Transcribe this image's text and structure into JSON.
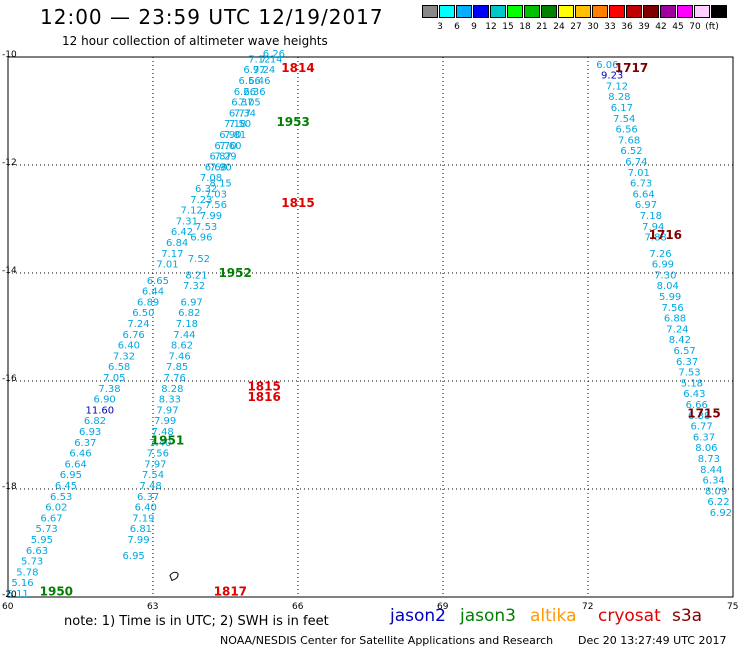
{
  "title": "12:00 — 23:59 UTC 12/19/2017",
  "subtitle": "12 hour collection of altimeter wave heights",
  "legend": {
    "unit": "(ft)",
    "colors": [
      "#888888",
      "#00ffff",
      "#00b0ff",
      "#0000ff",
      "#00c8c8",
      "#00ff00",
      "#00c000",
      "#008000",
      "#ffff00",
      "#ffc000",
      "#ff8000",
      "#ff0000",
      "#c00000",
      "#800000",
      "#a000a0",
      "#ff00ff",
      "#ffd0ff",
      "#000000"
    ],
    "labels": [
      "3",
      "6",
      "9",
      "12",
      "15",
      "18",
      "21",
      "24",
      "27",
      "30",
      "33",
      "36",
      "39",
      "42",
      "45",
      "70"
    ]
  },
  "axes": {
    "lat_ticks": [
      "-10",
      "-12",
      "-14",
      "-16",
      "-18",
      "-20"
    ],
    "lon_ticks": [
      "60",
      "63",
      "66",
      "69",
      "72",
      "75"
    ]
  },
  "passes": [
    {
      "time": "1814",
      "color": "#e00000",
      "lon": 66.0,
      "lat": -10.2
    },
    {
      "time": "1953",
      "color": "#008000",
      "lon": 65.9,
      "lat": -11.2
    },
    {
      "time": "1815",
      "color": "#e00000",
      "lon": 66.0,
      "lat": -12.7
    },
    {
      "time": "1952",
      "color": "#008000",
      "lon": 64.7,
      "lat": -14.0
    },
    {
      "time": "1815",
      "color": "#e00000",
      "lon": 65.3,
      "lat": -16.1
    },
    {
      "time": "1816",
      "color": "#e00000",
      "lon": 65.3,
      "lat": -16.3
    },
    {
      "time": "1951",
      "color": "#008000",
      "lon": 63.3,
      "lat": -17.1
    },
    {
      "time": "1950",
      "color": "#008000",
      "lon": 61.0,
      "lat": -19.9
    },
    {
      "time": "1817",
      "color": "#e00000",
      "lon": 64.6,
      "lat": -19.9
    },
    {
      "time": "1717",
      "color": "#800000",
      "lon": 72.9,
      "lat": -10.2
    },
    {
      "time": "1716",
      "color": "#800000",
      "lon": 73.6,
      "lat": -13.3
    },
    {
      "time": "1715",
      "color": "#800000",
      "lon": 74.4,
      "lat": -16.6
    }
  ],
  "tracks": [
    {
      "name": "track-a",
      "color": "#00a8e0",
      "values": [
        {
          "lon": 65.2,
          "lat": -10.1,
          "v": "7.12"
        },
        {
          "lon": 65.1,
          "lat": -10.3,
          "v": "6.97"
        },
        {
          "lon": 65.0,
          "lat": -10.5,
          "v": "6.56"
        },
        {
          "lon": 64.9,
          "lat": -10.7,
          "v": "6.26"
        },
        {
          "lon": 64.85,
          "lat": -10.9,
          "v": "6.37"
        },
        {
          "lon": 64.8,
          "lat": -11.1,
          "v": "6.77"
        },
        {
          "lon": 64.7,
          "lat": -11.3,
          "v": "7.18"
        },
        {
          "lon": 64.6,
          "lat": -11.5,
          "v": "6.90"
        },
        {
          "lon": 64.5,
          "lat": -11.7,
          "v": "6.70"
        },
        {
          "lon": 64.4,
          "lat": -11.9,
          "v": "6.87"
        },
        {
          "lon": 64.3,
          "lat": -12.1,
          "v": "6.68"
        },
        {
          "lon": 64.2,
          "lat": -12.3,
          "v": "7.08"
        },
        {
          "lon": 64.1,
          "lat": -12.5,
          "v": "6.32"
        },
        {
          "lon": 64.0,
          "lat": -12.7,
          "v": "7.23"
        },
        {
          "lon": 63.8,
          "lat": -12.9,
          "v": "7.12"
        },
        {
          "lon": 63.7,
          "lat": -13.1,
          "v": "7.31"
        },
        {
          "lon": 63.6,
          "lat": -13.3,
          "v": "6.42"
        },
        {
          "lon": 63.5,
          "lat": -13.5,
          "v": "6.84"
        },
        {
          "lon": 63.4,
          "lat": -13.7,
          "v": "7.17"
        },
        {
          "lon": 63.3,
          "lat": -13.9,
          "v": "7.01"
        },
        {
          "lon": 63.1,
          "lat": -14.2,
          "v": "6.65"
        },
        {
          "lon": 63.0,
          "lat": -14.4,
          "v": "6.44"
        },
        {
          "lon": 62.9,
          "lat": -14.6,
          "v": "6.89"
        },
        {
          "lon": 62.8,
          "lat": -14.8,
          "v": "6.50"
        },
        {
          "lon": 62.7,
          "lat": -15.0,
          "v": "7.24"
        },
        {
          "lon": 62.6,
          "lat": -15.2,
          "v": "6.76"
        },
        {
          "lon": 62.5,
          "lat": -15.4,
          "v": "6.40"
        },
        {
          "lon": 62.4,
          "lat": -15.6,
          "v": "7.32"
        },
        {
          "lon": 62.3,
          "lat": -15.8,
          "v": "6.58"
        },
        {
          "lon": 62.2,
          "lat": -16.0,
          "v": "7.05"
        },
        {
          "lon": 62.1,
          "lat": -16.2,
          "v": "7.38"
        },
        {
          "lon": 62.0,
          "lat": -16.4,
          "v": "6.90"
        },
        {
          "lon": 61.9,
          "lat": -16.6,
          "v": "11.60",
          "color": "#0000c0"
        },
        {
          "lon": 61.8,
          "lat": -16.8,
          "v": "6.82"
        },
        {
          "lon": 61.7,
          "lat": -17.0,
          "v": "6.93"
        },
        {
          "lon": 61.6,
          "lat": -17.2,
          "v": "6.37"
        },
        {
          "lon": 61.5,
          "lat": -17.4,
          "v": "6.46"
        },
        {
          "lon": 61.4,
          "lat": -17.6,
          "v": "6.64"
        },
        {
          "lon": 61.3,
          "lat": -17.8,
          "v": "6.95"
        },
        {
          "lon": 61.2,
          "lat": -18.0,
          "v": "6.45"
        },
        {
          "lon": 61.1,
          "lat": -18.2,
          "v": "6.53"
        },
        {
          "lon": 61.0,
          "lat": -18.4,
          "v": "6.02"
        },
        {
          "lon": 60.9,
          "lat": -18.6,
          "v": "6.67"
        },
        {
          "lon": 60.8,
          "lat": -18.8,
          "v": "5.73"
        },
        {
          "lon": 60.7,
          "lat": -19.0,
          "v": "5.95"
        },
        {
          "lon": 60.6,
          "lat": -19.2,
          "v": "6.63"
        },
        {
          "lon": 60.5,
          "lat": -19.4,
          "v": "5.73"
        },
        {
          "lon": 60.4,
          "lat": -19.6,
          "v": "5.78"
        },
        {
          "lon": 60.3,
          "lat": -19.8,
          "v": "5.16"
        },
        {
          "lon": 60.2,
          "lat": -20.0,
          "v": "6.11"
        }
      ]
    },
    {
      "name": "track-b",
      "color": "#00a8e0",
      "values": [
        {
          "lon": 65.5,
          "lat": -10.0,
          "v": "6.26"
        },
        {
          "lon": 65.45,
          "lat": -10.1,
          "v": "7.14"
        },
        {
          "lon": 65.3,
          "lat": -10.3,
          "v": "7.24"
        },
        {
          "lon": 65.2,
          "lat": -10.5,
          "v": "6.46"
        },
        {
          "lon": 65.1,
          "lat": -10.7,
          "v": "6.36"
        },
        {
          "lon": 65.0,
          "lat": -10.9,
          "v": "7.05"
        },
        {
          "lon": 64.9,
          "lat": -11.1,
          "v": "7.34"
        },
        {
          "lon": 64.8,
          "lat": -11.3,
          "v": "7.50"
        },
        {
          "lon": 64.7,
          "lat": -11.5,
          "v": "7.81"
        },
        {
          "lon": 64.6,
          "lat": -11.7,
          "v": "7.60"
        },
        {
          "lon": 64.5,
          "lat": -11.9,
          "v": "7.29"
        },
        {
          "lon": 64.4,
          "lat": -12.1,
          "v": "7.90"
        },
        {
          "lon": 64.4,
          "lat": -12.4,
          "v": "8.15"
        },
        {
          "lon": 64.3,
          "lat": -12.6,
          "v": "7.03"
        },
        {
          "lon": 64.3,
          "lat": -12.8,
          "v": "7.56"
        },
        {
          "lon": 64.2,
          "lat": -13.0,
          "v": "7.99"
        },
        {
          "lon": 64.1,
          "lat": -13.2,
          "v": "7.53"
        },
        {
          "lon": 64.0,
          "lat": -13.4,
          "v": "6.96"
        },
        {
          "lon": 63.95,
          "lat": -13.8,
          "v": "7.52"
        },
        {
          "lon": 63.9,
          "lat": -14.1,
          "v": "8.21"
        },
        {
          "lon": 63.85,
          "lat": -14.3,
          "v": "7.32"
        },
        {
          "lon": 63.8,
          "lat": -14.6,
          "v": "6.97"
        },
        {
          "lon": 63.75,
          "lat": -14.8,
          "v": "6.82"
        },
        {
          "lon": 63.7,
          "lat": -15.0,
          "v": "7.18"
        },
        {
          "lon": 63.65,
          "lat": -15.2,
          "v": "7.44"
        },
        {
          "lon": 63.6,
          "lat": -15.4,
          "v": "8.62"
        },
        {
          "lon": 63.55,
          "lat": -15.6,
          "v": "7.46"
        },
        {
          "lon": 63.5,
          "lat": -15.8,
          "v": "7.85"
        },
        {
          "lon": 63.45,
          "lat": -16.0,
          "v": "7.76"
        },
        {
          "lon": 63.4,
          "lat": -16.2,
          "v": "8.28"
        },
        {
          "lon": 63.35,
          "lat": -16.4,
          "v": "8.33"
        },
        {
          "lon": 63.3,
          "lat": -16.6,
          "v": "7.97"
        },
        {
          "lon": 63.25,
          "lat": -16.8,
          "v": "7.99"
        },
        {
          "lon": 63.2,
          "lat": -17.0,
          "v": "7.48"
        },
        {
          "lon": 63.15,
          "lat": -17.2,
          "v": "7.40"
        },
        {
          "lon": 63.1,
          "lat": -17.4,
          "v": "7.56"
        },
        {
          "lon": 63.05,
          "lat": -17.6,
          "v": "7.97"
        },
        {
          "lon": 63.0,
          "lat": -17.8,
          "v": "7.54"
        },
        {
          "lon": 62.95,
          "lat": -18.0,
          "v": "7.48"
        },
        {
          "lon": 62.9,
          "lat": -18.2,
          "v": "6.37"
        },
        {
          "lon": 62.85,
          "lat": -18.4,
          "v": "6.40"
        },
        {
          "lon": 62.8,
          "lat": -18.6,
          "v": "7.19"
        },
        {
          "lon": 62.75,
          "lat": -18.8,
          "v": "6.81"
        },
        {
          "lon": 62.7,
          "lat": -19.0,
          "v": "7.99"
        },
        {
          "lon": 62.6,
          "lat": -19.3,
          "v": "6.95"
        }
      ]
    },
    {
      "name": "track-c",
      "color": "#00a8e0",
      "values": [
        {
          "lon": 72.4,
          "lat": -10.2,
          "v": "6.06"
        },
        {
          "lon": 72.5,
          "lat": -10.4,
          "v": "9.23",
          "color": "#0000c0"
        },
        {
          "lon": 72.6,
          "lat": -10.6,
          "v": "7.12"
        },
        {
          "lon": 72.65,
          "lat": -10.8,
          "v": "8.28"
        },
        {
          "lon": 72.7,
          "lat": -11.0,
          "v": "6.17"
        },
        {
          "lon": 72.75,
          "lat": -11.2,
          "v": "7.54"
        },
        {
          "lon": 72.8,
          "lat": -11.4,
          "v": "6.56"
        },
        {
          "lon": 72.85,
          "lat": -11.6,
          "v": "7.68"
        },
        {
          "lon": 72.9,
          "lat": -11.8,
          "v": "6.52"
        },
        {
          "lon": 73.0,
          "lat": -12.0,
          "v": "6.74"
        },
        {
          "lon": 73.05,
          "lat": -12.2,
          "v": "7.01"
        },
        {
          "lon": 73.1,
          "lat": -12.4,
          "v": "6.73"
        },
        {
          "lon": 73.15,
          "lat": -12.6,
          "v": "6.64"
        },
        {
          "lon": 73.2,
          "lat": -12.8,
          "v": "6.97"
        },
        {
          "lon": 73.3,
          "lat": -13.0,
          "v": "7.18"
        },
        {
          "lon": 73.35,
          "lat": -13.2,
          "v": "7.94"
        },
        {
          "lon": 73.4,
          "lat": -13.4,
          "v": "7.88"
        },
        {
          "lon": 73.5,
          "lat": -13.7,
          "v": "7.26"
        },
        {
          "lon": 73.55,
          "lat": -13.9,
          "v": "6.99"
        },
        {
          "lon": 73.6,
          "lat": -14.1,
          "v": "7.30"
        },
        {
          "lon": 73.65,
          "lat": -14.3,
          "v": "8.04"
        },
        {
          "lon": 73.7,
          "lat": -14.5,
          "v": "5.99"
        },
        {
          "lon": 73.75,
          "lat": -14.7,
          "v": "7.56"
        },
        {
          "lon": 73.8,
          "lat": -14.9,
          "v": "6.88"
        },
        {
          "lon": 73.85,
          "lat": -15.1,
          "v": "7.24"
        },
        {
          "lon": 73.9,
          "lat": -15.3,
          "v": "8.42"
        },
        {
          "lon": 74.0,
          "lat": -15.5,
          "v": "6.57"
        },
        {
          "lon": 74.05,
          "lat": -15.7,
          "v": "6.37"
        },
        {
          "lon": 74.1,
          "lat": -15.9,
          "v": "7.53"
        },
        {
          "lon": 74.15,
          "lat": -16.1,
          "v": "5.18"
        },
        {
          "lon": 74.2,
          "lat": -16.3,
          "v": "6.43"
        },
        {
          "lon": 74.25,
          "lat": -16.5,
          "v": "6.66"
        },
        {
          "lon": 74.3,
          "lat": -16.7,
          "v": "6.38"
        },
        {
          "lon": 74.35,
          "lat": -16.9,
          "v": "6.77"
        },
        {
          "lon": 74.4,
          "lat": -17.1,
          "v": "6.37"
        },
        {
          "lon": 74.45,
          "lat": -17.3,
          "v": "8.06"
        },
        {
          "lon": 74.5,
          "lat": -17.5,
          "v": "8.73"
        },
        {
          "lon": 74.55,
          "lat": -17.7,
          "v": "8.44"
        },
        {
          "lon": 74.6,
          "lat": -17.9,
          "v": "6.34"
        },
        {
          "lon": 74.65,
          "lat": -18.1,
          "v": "8.09"
        },
        {
          "lon": 74.7,
          "lat": -18.3,
          "v": "6.22"
        },
        {
          "lon": 74.75,
          "lat": -18.5,
          "v": "6.92"
        }
      ]
    }
  ],
  "note": "note: 1) Time is in UTC; 2) SWH is in feet",
  "satellites": [
    {
      "label": "jason2",
      "color": "#0000c0"
    },
    {
      "label": "jason3",
      "color": "#008000"
    },
    {
      "label": "altika",
      "color": "#ff9900"
    },
    {
      "label": "cryosat",
      "color": "#e00000"
    },
    {
      "label": "s3a",
      "color": "#800000"
    }
  ],
  "credit": "NOAA/NESDIS Center for Satellite Applications and Research",
  "generated": "Dec 20 13:27:49 UTC 2017"
}
